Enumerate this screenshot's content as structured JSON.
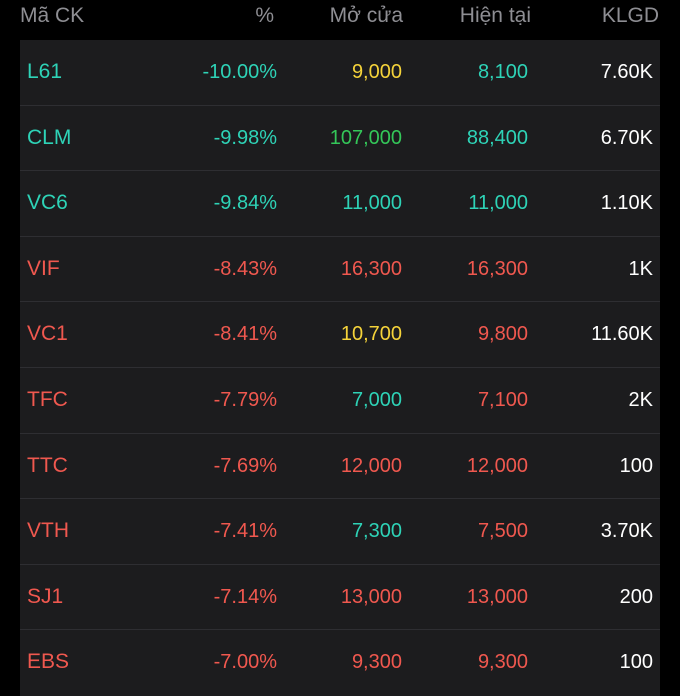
{
  "colors": {
    "floor": "#2ed3b7",
    "down": "#f0584f",
    "ref": "#f5d33a",
    "up": "#34c759",
    "text": "#ffffff",
    "header": "#8e8e93"
  },
  "header": {
    "code": "Mã CK",
    "percent": "%",
    "open": "Mở cửa",
    "current": "Hiện tại",
    "volume": "KLGD"
  },
  "rows": [
    {
      "code": "L61",
      "percent": "-10.00%",
      "open": "9,000",
      "current": "8,100",
      "volume": "7.60K",
      "code_color": "floor",
      "pct_color": "floor",
      "open_color": "ref",
      "cur_color": "floor"
    },
    {
      "code": "CLM",
      "percent": "-9.98%",
      "open": "107,000",
      "current": "88,400",
      "volume": "6.70K",
      "code_color": "floor",
      "pct_color": "floor",
      "open_color": "up",
      "cur_color": "floor"
    },
    {
      "code": "VC6",
      "percent": "-9.84%",
      "open": "11,000",
      "current": "11,000",
      "volume": "1.10K",
      "code_color": "floor",
      "pct_color": "floor",
      "open_color": "floor",
      "cur_color": "floor"
    },
    {
      "code": "VIF",
      "percent": "-8.43%",
      "open": "16,300",
      "current": "16,300",
      "volume": "1K",
      "code_color": "down",
      "pct_color": "down",
      "open_color": "down",
      "cur_color": "down"
    },
    {
      "code": "VC1",
      "percent": "-8.41%",
      "open": "10,700",
      "current": "9,800",
      "volume": "11.60K",
      "code_color": "down",
      "pct_color": "down",
      "open_color": "ref",
      "cur_color": "down"
    },
    {
      "code": "TFC",
      "percent": "-7.79%",
      "open": "7,000",
      "current": "7,100",
      "volume": "2K",
      "code_color": "down",
      "pct_color": "down",
      "open_color": "floor",
      "cur_color": "down"
    },
    {
      "code": "TTC",
      "percent": "-7.69%",
      "open": "12,000",
      "current": "12,000",
      "volume": "100",
      "code_color": "down",
      "pct_color": "down",
      "open_color": "down",
      "cur_color": "down"
    },
    {
      "code": "VTH",
      "percent": "-7.41%",
      "open": "7,300",
      "current": "7,500",
      "volume": "3.70K",
      "code_color": "down",
      "pct_color": "down",
      "open_color": "floor",
      "cur_color": "down"
    },
    {
      "code": "SJ1",
      "percent": "-7.14%",
      "open": "13,000",
      "current": "13,000",
      "volume": "200",
      "code_color": "down",
      "pct_color": "down",
      "open_color": "down",
      "cur_color": "down"
    },
    {
      "code": "EBS",
      "percent": "-7.00%",
      "open": "9,300",
      "current": "9,300",
      "volume": "100",
      "code_color": "down",
      "pct_color": "down",
      "open_color": "down",
      "cur_color": "down"
    }
  ]
}
